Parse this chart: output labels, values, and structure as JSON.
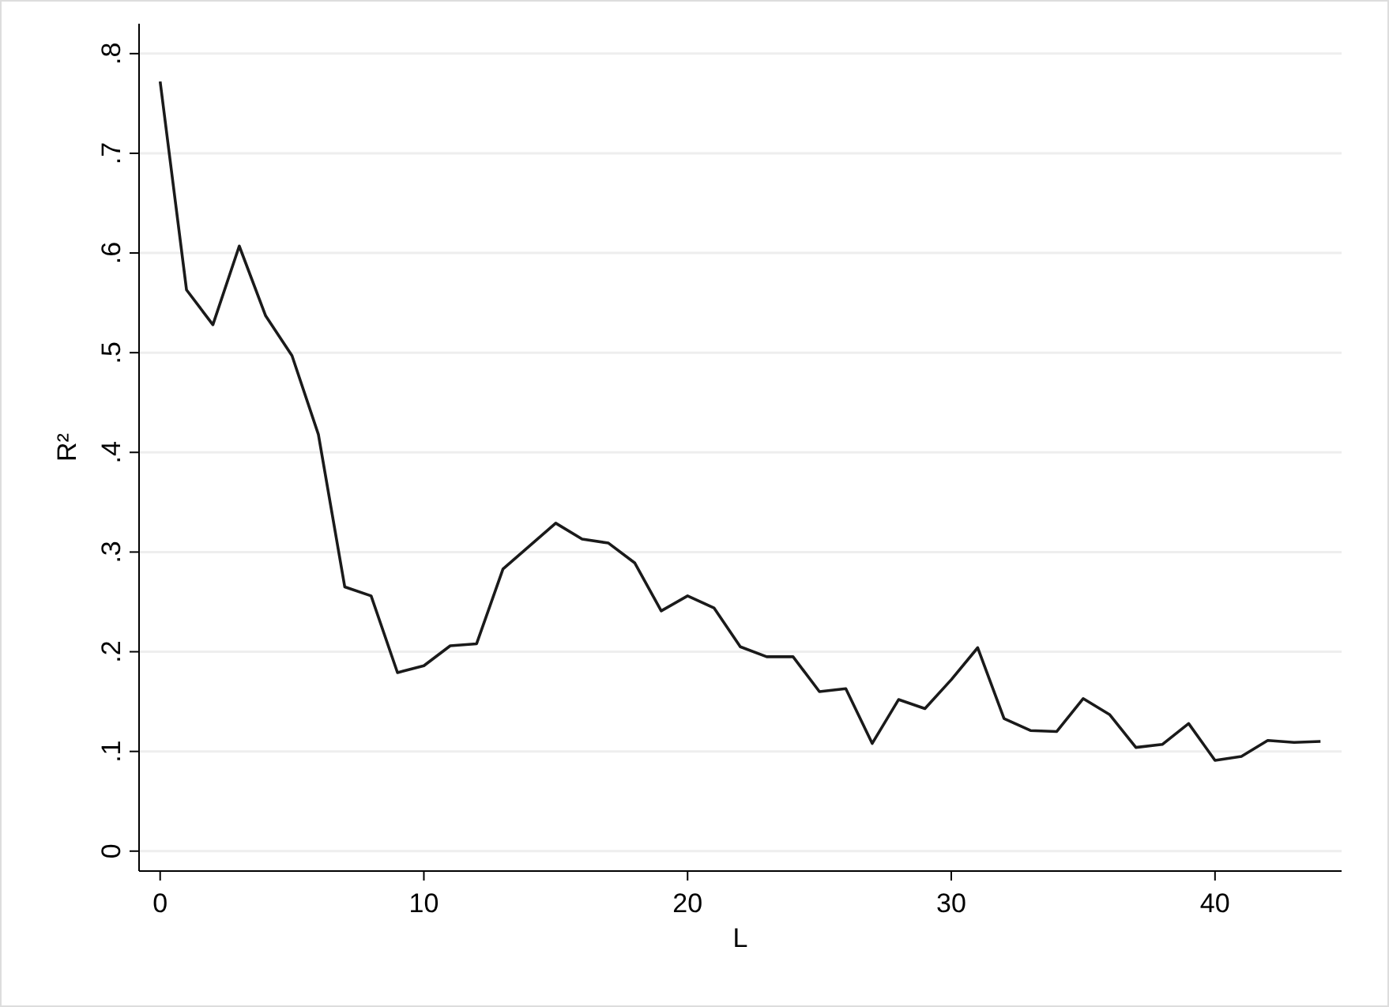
{
  "chart_data": {
    "type": "line",
    "xlabel": "L",
    "ylabel": "R²",
    "x": [
      0,
      1,
      2,
      3,
      4,
      5,
      6,
      7,
      8,
      9,
      10,
      11,
      12,
      13,
      14,
      15,
      16,
      17,
      18,
      19,
      20,
      21,
      22,
      23,
      24,
      25,
      26,
      27,
      28,
      29,
      30,
      31,
      32,
      33,
      34,
      35,
      36,
      37,
      38,
      39,
      40,
      41,
      42,
      43,
      44
    ],
    "series": [
      {
        "color": "#1a1a1a",
        "values": [
          0.772,
          0.563,
          0.528,
          0.607,
          0.537,
          0.497,
          0.418,
          0.265,
          0.256,
          0.179,
          0.186,
          0.206,
          0.208,
          0.283,
          0.306,
          0.329,
          0.313,
          0.309,
          0.289,
          0.241,
          0.256,
          0.244,
          0.205,
          0.195,
          0.195,
          0.16,
          0.163,
          0.108,
          0.152,
          0.143,
          0.172,
          0.204,
          0.133,
          0.121,
          0.12,
          0.153,
          0.137,
          0.104,
          0.107,
          0.128,
          0.091,
          0.095,
          0.111,
          0.109,
          0.11
        ]
      }
    ],
    "xlim": [
      -0.8,
      44.8
    ],
    "xticks": [
      0,
      10,
      20,
      30,
      40
    ],
    "ylim": [
      -0.02,
      0.83
    ],
    "yticks": [
      {
        "value": 0,
        "label": "0"
      },
      {
        "value": 0.1,
        "label": ".1"
      },
      {
        "value": 0.2,
        "label": ".2"
      },
      {
        "value": 0.3,
        "label": ".3"
      },
      {
        "value": 0.4,
        "label": ".4"
      },
      {
        "value": 0.5,
        "label": ".5"
      },
      {
        "value": 0.6,
        "label": ".6"
      },
      {
        "value": 0.7,
        "label": ".7"
      },
      {
        "value": 0.8,
        "label": ".8"
      }
    ],
    "grid": "y",
    "marker": "none",
    "line_style": "solid"
  }
}
